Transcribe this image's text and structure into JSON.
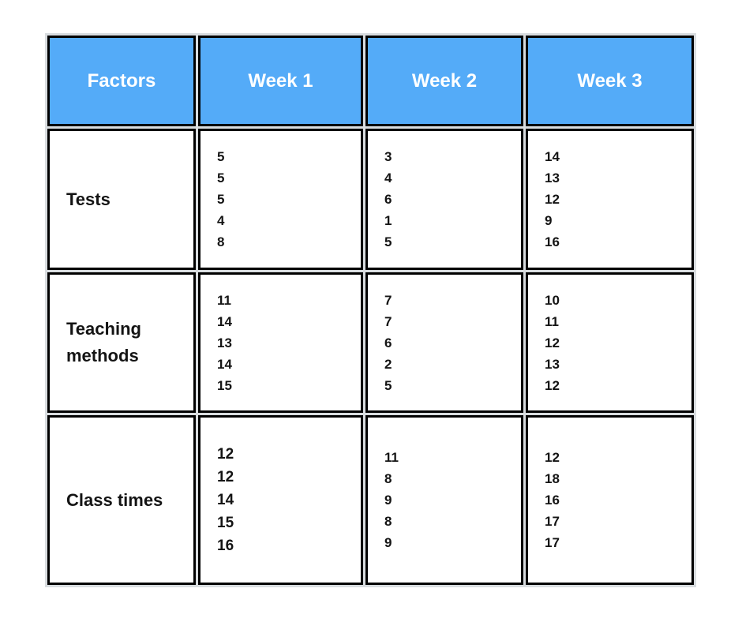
{
  "chart_data": {
    "type": "table",
    "columns": [
      "Factors",
      "Week 1",
      "Week 2",
      "Week 3"
    ],
    "rows": [
      {
        "factor": "Tests",
        "week1": [
          5,
          5,
          5,
          4,
          8
        ],
        "week2": [
          3,
          4,
          6,
          1,
          5
        ],
        "week3": [
          14,
          13,
          12,
          9,
          16
        ]
      },
      {
        "factor": "Teaching methods",
        "week1": [
          11,
          14,
          13,
          14,
          15
        ],
        "week2": [
          7,
          7,
          6,
          2,
          5
        ],
        "week3": [
          10,
          11,
          12,
          13,
          12
        ]
      },
      {
        "factor": "Class times",
        "week1": [
          12,
          12,
          14,
          15,
          16
        ],
        "week2": [
          11,
          8,
          9,
          8,
          9
        ],
        "week3": [
          12,
          18,
          16,
          17,
          17
        ]
      }
    ],
    "layout_hints": {
      "header_row": true,
      "values_per_cell": 5,
      "cell_value_alignment": "left",
      "header_alignment": "center"
    }
  },
  "colors": {
    "header_bg": "#54ABF8",
    "header_text": "#FFFFFF",
    "cell_bg": "#FFFFFF",
    "border": "#000000",
    "body_text": "#141414"
  }
}
